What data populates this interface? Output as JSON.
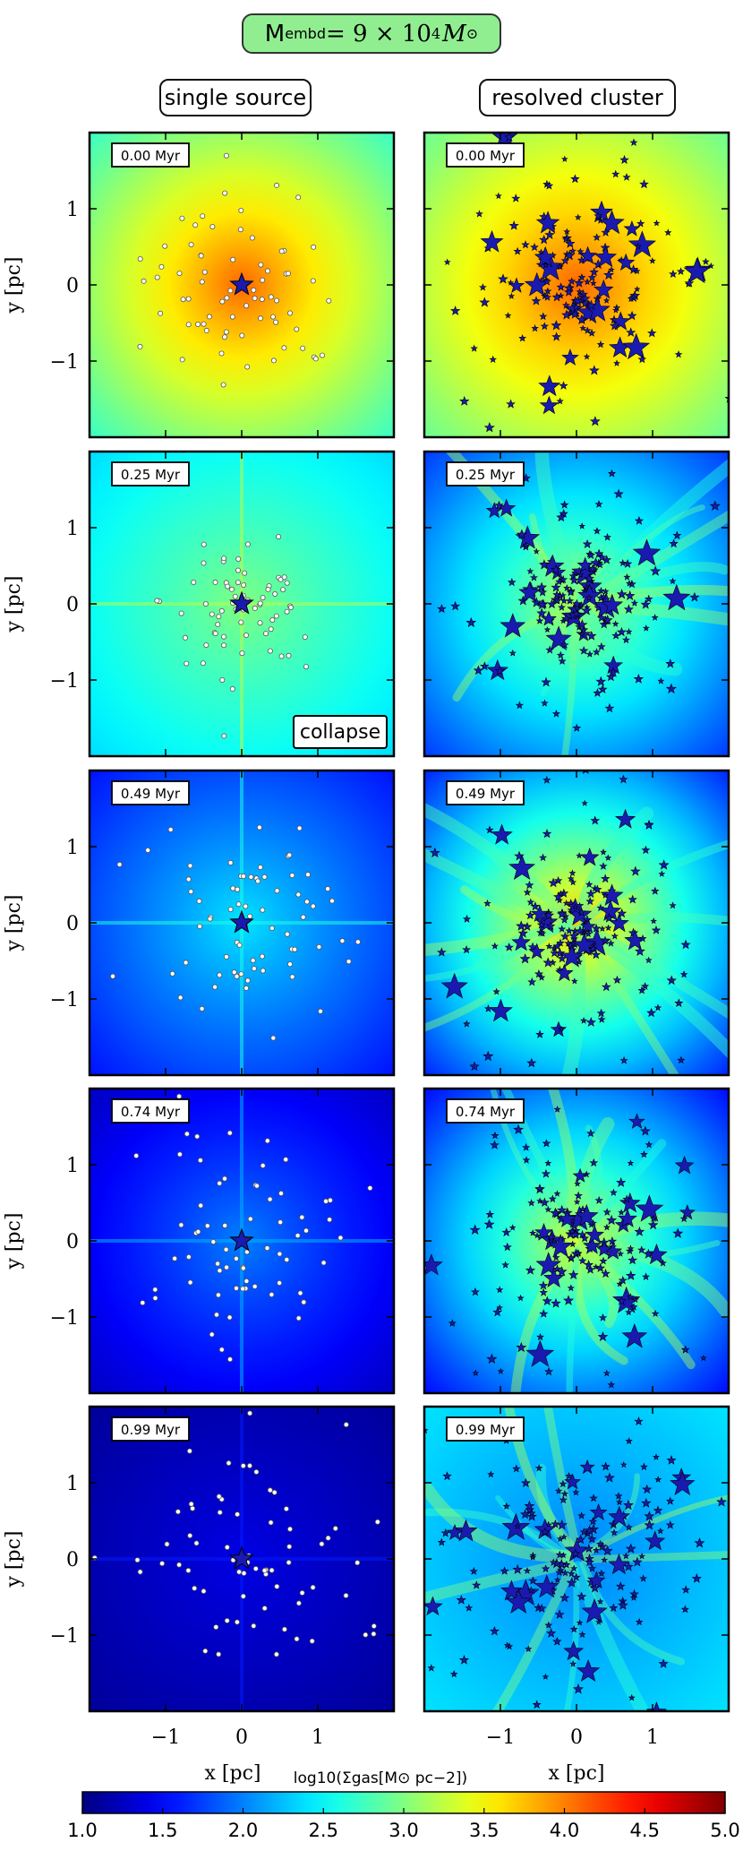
{
  "title": {
    "prefix": "M",
    "sub": "embd",
    "middle": " = 9 × 10",
    "sup": "4",
    "suffix_m": "M",
    "suffix_sub": "⊙"
  },
  "columns": [
    "single source",
    "resolved cluster"
  ],
  "chart_data": {
    "type": "heatmap",
    "panels_layout": "5 rows × 2 columns",
    "rows": [
      {
        "time": "0.00 Myr",
        "left_annotation": ""
      },
      {
        "time": "0.25 Myr",
        "left_annotation": "collapse"
      },
      {
        "time": "0.49 Myr",
        "left_annotation": ""
      },
      {
        "time": "0.74 Myr",
        "left_annotation": ""
      },
      {
        "time": "0.99 Myr",
        "left_annotation": ""
      }
    ],
    "xlabel": "x [pc]",
    "ylabel": "y [pc]",
    "xlim": [
      -2,
      2
    ],
    "ylim": [
      -2,
      2
    ],
    "xticks": [
      "−1",
      "0",
      "1"
    ],
    "yticks": [
      "1",
      "0",
      "−1"
    ],
    "colorbar": {
      "label": "log10(Σgas[M⊙ pc−2])",
      "range": [
        1.0,
        5.0
      ],
      "ticks": [
        "1.0",
        "1.5",
        "2.0",
        "2.5",
        "3.0",
        "3.5",
        "4.0",
        "4.5",
        "5.0"
      ],
      "colormap": "jet"
    },
    "panel_backgrounds": {
      "single_source": [
        {
          "center": 4.1,
          "edge": 2.7
        },
        {
          "center": 3.0,
          "edge": 2.35
        },
        {
          "center": 2.4,
          "edge": 1.55
        },
        {
          "center": 2.0,
          "edge": 1.25
        },
        {
          "center": 1.4,
          "edge": 1.1
        }
      ],
      "resolved_cluster": [
        {
          "center": 4.1,
          "edge": 2.9
        },
        {
          "center": 3.2,
          "edge": 1.7
        },
        {
          "center": 3.7,
          "edge": 1.6
        },
        {
          "center": 3.3,
          "edge": 1.5
        },
        {
          "center": 2.0,
          "edge": 2.4
        }
      ]
    },
    "colors": {
      "star_fill": "#1a1ab0",
      "star_edge": "#000000",
      "particle_fill": "#ffffff",
      "particle_edge": "#555555"
    }
  }
}
